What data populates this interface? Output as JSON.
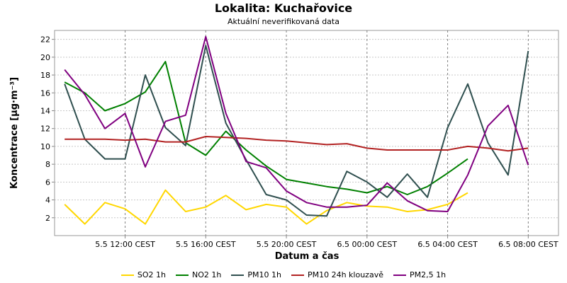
{
  "chart_data": {
    "type": "line",
    "title": "Lokalita: Kuchařovice",
    "subtitle": "Aktuální neverifikovaná data",
    "xlabel": "Datum a čas",
    "ylabel": "Koncentrace [µg·m⁻³]",
    "x_ticks": [
      "5.5 12:00 CEST",
      "5.5 16:00 CEST",
      "5.5 20:00 CEST",
      "6.5 00:00 CEST",
      "6.5 04:00 CEST",
      "6.5 08:00 CEST"
    ],
    "x_tick_hours": [
      12,
      16,
      20,
      24,
      28,
      32
    ],
    "xlim_hours": [
      8.5,
      33.5
    ],
    "y_ticks": [
      2,
      4,
      6,
      8,
      10,
      12,
      14,
      16,
      18,
      20,
      22
    ],
    "ylim": [
      0,
      23
    ],
    "grid": true,
    "legend_position": "bottom",
    "series": [
      {
        "name": "SO2 1h",
        "color": "#ffd700",
        "x": [
          9,
          10,
          11,
          12,
          13,
          14,
          15,
          16,
          17,
          18,
          19,
          20,
          21,
          22,
          23,
          24,
          25,
          26,
          27,
          28,
          29
        ],
        "values": [
          3.5,
          1.3,
          3.7,
          3.0,
          1.3,
          5.1,
          2.7,
          3.2,
          4.5,
          2.9,
          3.5,
          3.2,
          1.3,
          2.8,
          3.7,
          3.3,
          3.2,
          2.7,
          2.9,
          3.5,
          4.8
        ]
      },
      {
        "name": "NO2 1h",
        "color": "#008000",
        "x": [
          9,
          10,
          11,
          12,
          13,
          14,
          15,
          16,
          17,
          18,
          19,
          20,
          21,
          22,
          23,
          24,
          25,
          26,
          27,
          28,
          29,
          30
        ],
        "values": [
          17.2,
          16.0,
          14.0,
          14.8,
          16.1,
          19.5,
          10.4,
          9.0,
          11.7,
          9.6,
          7.8,
          6.3,
          5.9,
          5.5,
          5.2,
          4.8,
          5.5,
          4.6,
          5.5,
          7.0,
          8.6,
          null
        ]
      },
      {
        "name": "PM10 1h",
        "color": "#2f4f4f",
        "x": [
          9,
          10,
          11,
          12,
          13,
          14,
          15,
          16,
          17,
          18,
          19,
          20,
          21,
          22,
          23,
          24,
          25,
          26,
          27,
          28,
          29,
          30,
          31,
          32
        ],
        "values": [
          17.0,
          10.8,
          8.6,
          8.6,
          18.0,
          12.1,
          10.1,
          21.3,
          12.6,
          8.5,
          4.6,
          4.0,
          2.3,
          2.2,
          7.2,
          6.0,
          4.3,
          6.9,
          4.3,
          12.1,
          17.0,
          10.4,
          6.8,
          20.7
        ]
      },
      {
        "name": "PM10 24h klouzavě",
        "color": "#b22222",
        "x": [
          9,
          10,
          11,
          12,
          13,
          14,
          15,
          16,
          17,
          18,
          19,
          20,
          21,
          22,
          23,
          24,
          25,
          26,
          27,
          28,
          29,
          30,
          31,
          32
        ],
        "values": [
          10.8,
          10.8,
          10.8,
          10.7,
          10.8,
          10.5,
          10.5,
          11.1,
          11.0,
          10.9,
          10.7,
          10.6,
          10.4,
          10.2,
          10.3,
          9.8,
          9.6,
          9.6,
          9.6,
          9.6,
          10.0,
          9.8,
          9.5,
          9.8
        ]
      },
      {
        "name": "PM2,5 1h",
        "color": "#800080",
        "x": [
          9,
          10,
          11,
          12,
          13,
          14,
          15,
          16,
          17,
          18,
          19,
          20,
          21,
          22,
          23,
          24,
          25,
          26,
          27,
          28,
          29,
          30,
          31,
          32
        ],
        "values": [
          18.6,
          15.8,
          12.0,
          13.7,
          7.7,
          12.8,
          13.5,
          22.3,
          13.7,
          8.3,
          7.6,
          5.0,
          3.7,
          3.2,
          3.2,
          3.4,
          5.9,
          3.9,
          2.8,
          2.7,
          6.8,
          12.3,
          14.6,
          7.9
        ]
      }
    ]
  }
}
